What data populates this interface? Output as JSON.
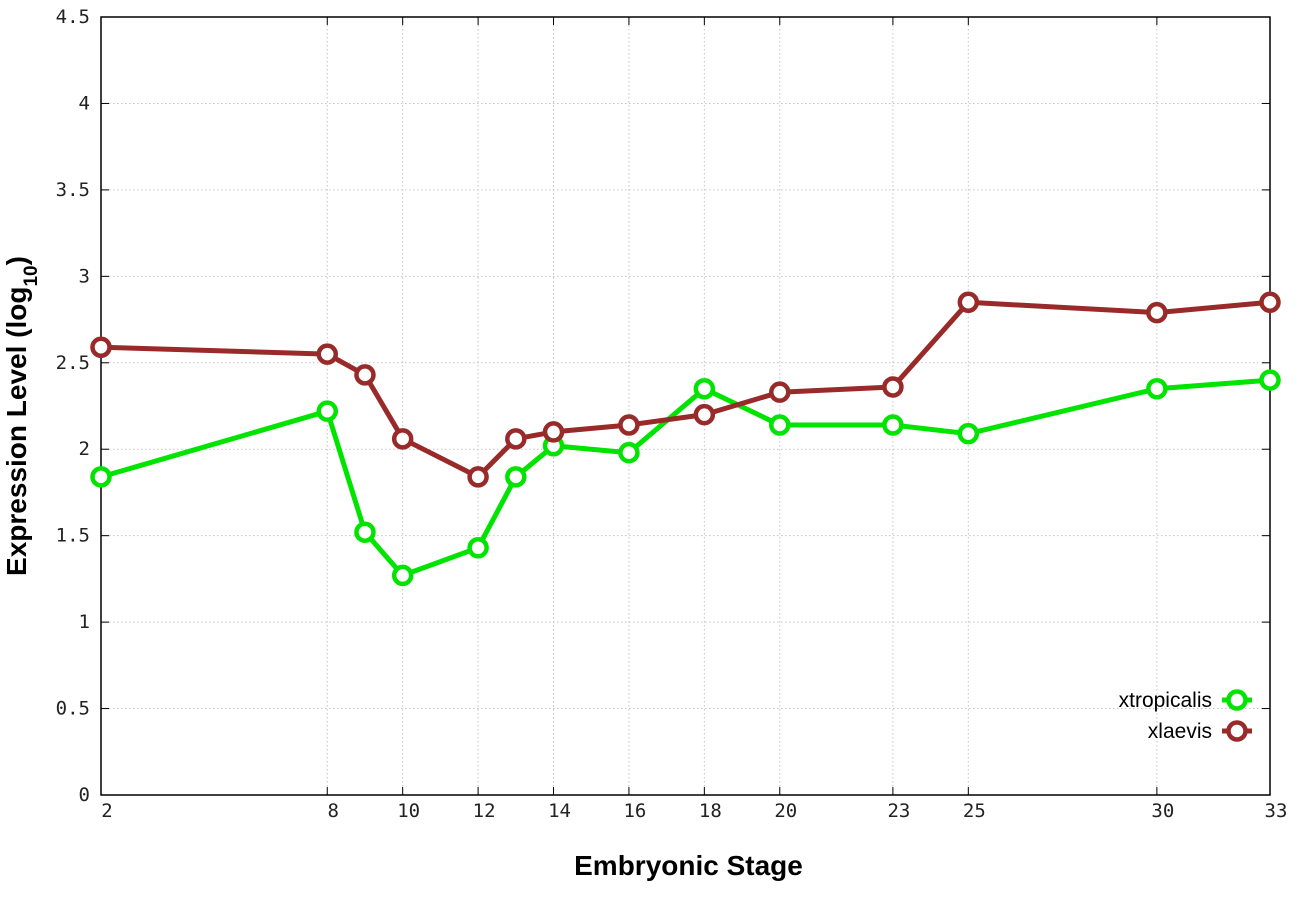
{
  "chart_data": {
    "type": "line",
    "xlabel": "Embryonic Stage",
    "ylabel_main": "Expression Level (log",
    "ylabel_sub": "10",
    "ylabel_close": ")",
    "x_ticks": [
      2,
      8,
      10,
      12,
      14,
      16,
      18,
      20,
      23,
      25,
      30,
      33
    ],
    "y_ticks": [
      "0",
      "0.5",
      "1",
      "1.5",
      "2",
      "2.5",
      "3",
      "3.5",
      "4",
      "4.5"
    ],
    "ylim": [
      0,
      4.5
    ],
    "grid": true,
    "legend_position": "bottom-right",
    "series": [
      {
        "name": "xtropicalis",
        "color": "#00e400",
        "x": [
          2,
          8,
          9,
          10,
          12,
          13,
          14,
          16,
          18,
          20,
          23,
          25,
          30,
          33
        ],
        "values": [
          1.84,
          2.22,
          1.52,
          1.27,
          1.43,
          1.84,
          2.02,
          1.98,
          2.35,
          2.14,
          2.14,
          2.09,
          2.35,
          2.4
        ]
      },
      {
        "name": "xlaevis",
        "color": "#992a2a",
        "x": [
          2,
          8,
          9,
          10,
          12,
          13,
          14,
          16,
          18,
          20,
          23,
          25,
          30,
          33
        ],
        "values": [
          2.59,
          2.55,
          2.43,
          2.06,
          1.84,
          2.06,
          2.1,
          2.14,
          2.2,
          2.33,
          2.36,
          2.85,
          2.79,
          2.85
        ]
      }
    ]
  }
}
